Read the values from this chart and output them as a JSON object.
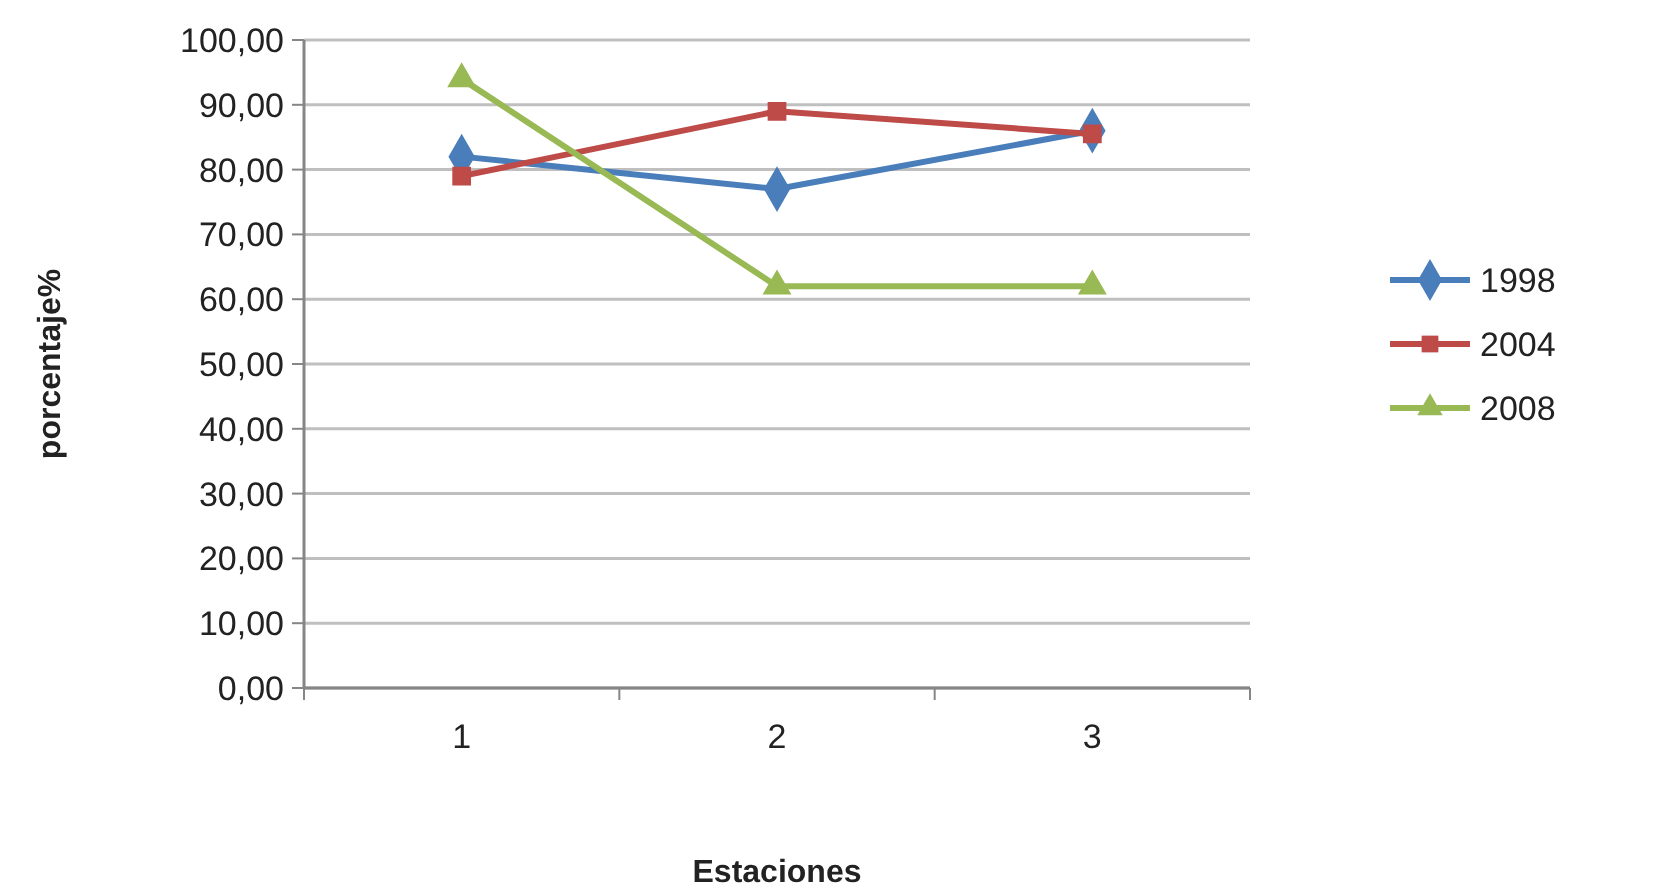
{
  "chart_data": {
    "type": "line",
    "xlabel": "Estaciones",
    "ylabel": "porcentaje%",
    "categories": [
      "1",
      "2",
      "3"
    ],
    "series": [
      {
        "name": "1998",
        "color": "#4a7ebb",
        "values": [
          82,
          77,
          86
        ],
        "marker": "diamond"
      },
      {
        "name": "2004",
        "color": "#be4b48",
        "values": [
          79,
          89,
          85.5
        ],
        "marker": "square"
      },
      {
        "name": "2008",
        "color": "#98b954",
        "values": [
          94,
          62,
          62
        ],
        "marker": "triangle"
      }
    ],
    "ylim": [
      0,
      100
    ],
    "yticks": [
      {
        "value": 0,
        "label": "0,00"
      },
      {
        "value": 10,
        "label": "10,00"
      },
      {
        "value": 20,
        "label": "20,00"
      },
      {
        "value": 30,
        "label": "30,00"
      },
      {
        "value": 40,
        "label": "40,00"
      },
      {
        "value": 50,
        "label": "50,00"
      },
      {
        "value": 60,
        "label": "60,00"
      },
      {
        "value": 70,
        "label": "70,00"
      },
      {
        "value": 80,
        "label": "80,00"
      },
      {
        "value": 90,
        "label": "90,00"
      },
      {
        "value": 100,
        "label": "100,00"
      }
    ],
    "grid": "y",
    "legend": "right",
    "line_style": "solid"
  }
}
